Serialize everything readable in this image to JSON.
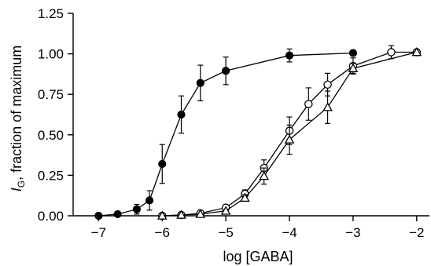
{
  "chart_data": {
    "type": "scatter",
    "xlabel": "log [GABA]",
    "ylabel": {
      "main": "I",
      "subscript": "G",
      "rest": ", fraction of maximum"
    },
    "xlim": [
      -7.4,
      -1.8
    ],
    "ylim": [
      0,
      1.25
    ],
    "x_ticks": [
      -7,
      -6,
      -5,
      -4,
      -3,
      -2
    ],
    "x_tick_labels": [
      "−7",
      "−6",
      "−5",
      "−4",
      "−3",
      "−2"
    ],
    "y_ticks": [
      0,
      0.25,
      0.5,
      0.75,
      1.0,
      1.25
    ],
    "y_tick_labels": [
      "0.00",
      "0.25",
      "0.50",
      "0.75",
      "1.00",
      "1.25"
    ],
    "grid": false,
    "series": [
      {
        "marker": "filled-circle",
        "color": "#000000",
        "points": [
          {
            "x": -7.0,
            "y": 0.0,
            "err": 0.0
          },
          {
            "x": -6.7,
            "y": 0.01,
            "err": 0.0
          },
          {
            "x": -6.4,
            "y": 0.04,
            "err": 0.03
          },
          {
            "x": -6.2,
            "y": 0.095,
            "err": 0.06
          },
          {
            "x": -6.0,
            "y": 0.32,
            "err": 0.12
          },
          {
            "x": -5.7,
            "y": 0.625,
            "err": 0.115
          },
          {
            "x": -5.4,
            "y": 0.82,
            "err": 0.11
          },
          {
            "x": -5.0,
            "y": 0.895,
            "err": 0.085
          },
          {
            "x": -4.0,
            "y": 0.99,
            "err": 0.04
          },
          {
            "x": -3.0,
            "y": 1.005,
            "err": 0.0
          }
        ]
      },
      {
        "marker": "open-circle",
        "color": "#000000",
        "points": [
          {
            "x": -6.0,
            "y": 0.0,
            "err": 0.0
          },
          {
            "x": -5.7,
            "y": 0.005,
            "err": 0.0
          },
          {
            "x": -5.4,
            "y": 0.015,
            "err": 0.01
          },
          {
            "x": -5.0,
            "y": 0.05,
            "err": 0.015
          },
          {
            "x": -4.7,
            "y": 0.135,
            "err": 0.025
          },
          {
            "x": -4.4,
            "y": 0.295,
            "err": 0.05
          },
          {
            "x": -4.0,
            "y": 0.525,
            "err": 0.085
          },
          {
            "x": -3.7,
            "y": 0.69,
            "err": 0.1
          },
          {
            "x": -3.4,
            "y": 0.81,
            "err": 0.07
          },
          {
            "x": -3.0,
            "y": 0.925,
            "err": 0.05
          },
          {
            "x": -2.4,
            "y": 1.01,
            "err": 0.04
          },
          {
            "x": -2.0,
            "y": 1.01,
            "err": 0.0
          }
        ]
      },
      {
        "marker": "open-triangle",
        "color": "#000000",
        "points": [
          {
            "x": -6.0,
            "y": 0.0,
            "err": 0.0
          },
          {
            "x": -5.7,
            "y": 0.005,
            "err": 0.0
          },
          {
            "x": -5.4,
            "y": 0.01,
            "err": 0.0
          },
          {
            "x": -5.0,
            "y": 0.03,
            "err": 0.0
          },
          {
            "x": -4.7,
            "y": 0.11,
            "err": 0.02
          },
          {
            "x": -4.4,
            "y": 0.245,
            "err": 0.05
          },
          {
            "x": -4.0,
            "y": 0.47,
            "err": 0.09
          },
          {
            "x": -3.4,
            "y": 0.67,
            "err": 0.1
          },
          {
            "x": -3.0,
            "y": 0.91,
            "err": 0.03
          },
          {
            "x": -2.0,
            "y": 1.01,
            "err": 0.0
          }
        ]
      }
    ]
  }
}
